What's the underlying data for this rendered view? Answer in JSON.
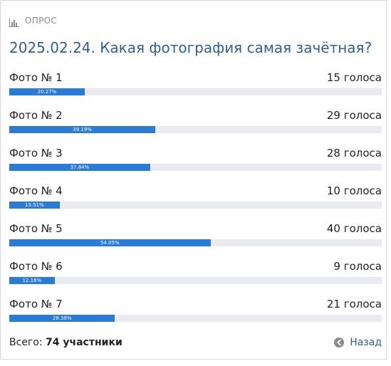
{
  "header": {
    "icon": "bar-chart-icon",
    "label": "ОПРОС"
  },
  "poll": {
    "title": "2025.02.24. Какая фотография самая зачётная?",
    "options": [
      {
        "name": "Фото № 1",
        "votes_text": "15 голоса",
        "percent_label": "20.27%",
        "percent": 20.27
      },
      {
        "name": "Фото № 2",
        "votes_text": "29 голоса",
        "percent_label": "39.19%",
        "percent": 39.19
      },
      {
        "name": "Фото № 3",
        "votes_text": "28 голоса",
        "percent_label": "37.84%",
        "percent": 37.84
      },
      {
        "name": "Фото № 4",
        "votes_text": "10 голоса",
        "percent_label": "13.51%",
        "percent": 13.51
      },
      {
        "name": "Фото № 5",
        "votes_text": "40 голоса",
        "percent_label": "54.05%",
        "percent": 54.05
      },
      {
        "name": "Фото № 6",
        "votes_text": "9 голоса",
        "percent_label": "12.16%",
        "percent": 12.16
      },
      {
        "name": "Фото № 7",
        "votes_text": "21 голоса",
        "percent_label": "28.38%",
        "percent": 28.38
      }
    ]
  },
  "footer": {
    "total_label": "Всего:",
    "total_value": "74 участники",
    "back_label": "Назад",
    "back_icon": "arrow-left-circle-icon"
  },
  "colors": {
    "accent": "#2a7bd8",
    "title": "#2e5f95",
    "track": "#e9ebee"
  }
}
